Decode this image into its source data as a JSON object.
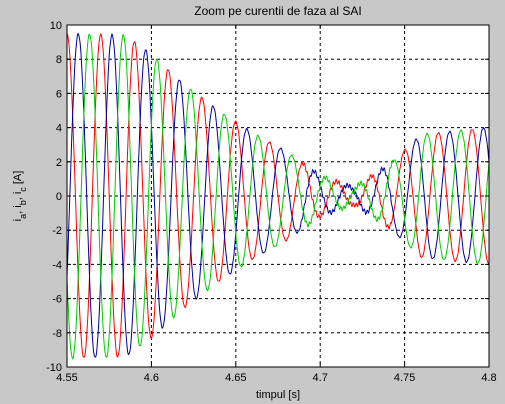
{
  "chart_data": {
    "type": "line",
    "title": "Zoom pe curentii de faza al SAI",
    "xlabel": "timpul [s]",
    "ylabel_parts": [
      "i",
      "a",
      ", i",
      "b",
      ", i",
      "c",
      " [A]"
    ],
    "xlim": [
      4.55,
      4.8
    ],
    "ylim": [
      -10,
      10
    ],
    "xticks": [
      "4.55",
      "4.6",
      "4.65",
      "4.7",
      "4.75",
      "4.8"
    ],
    "yticks": [
      "-10",
      "-8",
      "-6",
      "-4",
      "-2",
      "0",
      "2",
      "4",
      "6",
      "8",
      "10"
    ],
    "grid": true,
    "period_s": 0.02,
    "series": [
      {
        "color": "#ff0000",
        "phase_offset_s": 0.0,
        "envelope": [
          [
            4.55,
            9.5
          ],
          [
            4.585,
            9.4
          ],
          [
            4.6,
            8.3
          ],
          [
            4.62,
            6.5
          ],
          [
            4.64,
            5.0
          ],
          [
            4.66,
            3.7
          ],
          [
            4.68,
            2.6
          ],
          [
            4.7,
            1.2
          ],
          [
            4.72,
            0.5
          ],
          [
            4.74,
            1.8
          ],
          [
            4.76,
            3.6
          ],
          [
            4.8,
            4.0
          ]
        ]
      },
      {
        "color": "#000099",
        "phase_offset_s": 0.00667,
        "envelope": [
          [
            4.55,
            9.5
          ],
          [
            4.585,
            9.4
          ],
          [
            4.6,
            8.3
          ],
          [
            4.62,
            6.5
          ],
          [
            4.64,
            5.0
          ],
          [
            4.66,
            3.7
          ],
          [
            4.68,
            2.6
          ],
          [
            4.7,
            1.2
          ],
          [
            4.72,
            0.5
          ],
          [
            4.74,
            1.8
          ],
          [
            4.76,
            3.6
          ],
          [
            4.8,
            4.0
          ]
        ]
      },
      {
        "color": "#00cc00",
        "phase_offset_s": 0.01333,
        "envelope": [
          [
            4.55,
            9.5
          ],
          [
            4.585,
            9.4
          ],
          [
            4.6,
            8.3
          ],
          [
            4.62,
            6.5
          ],
          [
            4.64,
            5.0
          ],
          [
            4.66,
            3.7
          ],
          [
            4.68,
            2.6
          ],
          [
            4.7,
            1.2
          ],
          [
            4.72,
            0.5
          ],
          [
            4.74,
            1.8
          ],
          [
            4.76,
            3.6
          ],
          [
            4.8,
            4.0
          ]
        ]
      }
    ]
  }
}
